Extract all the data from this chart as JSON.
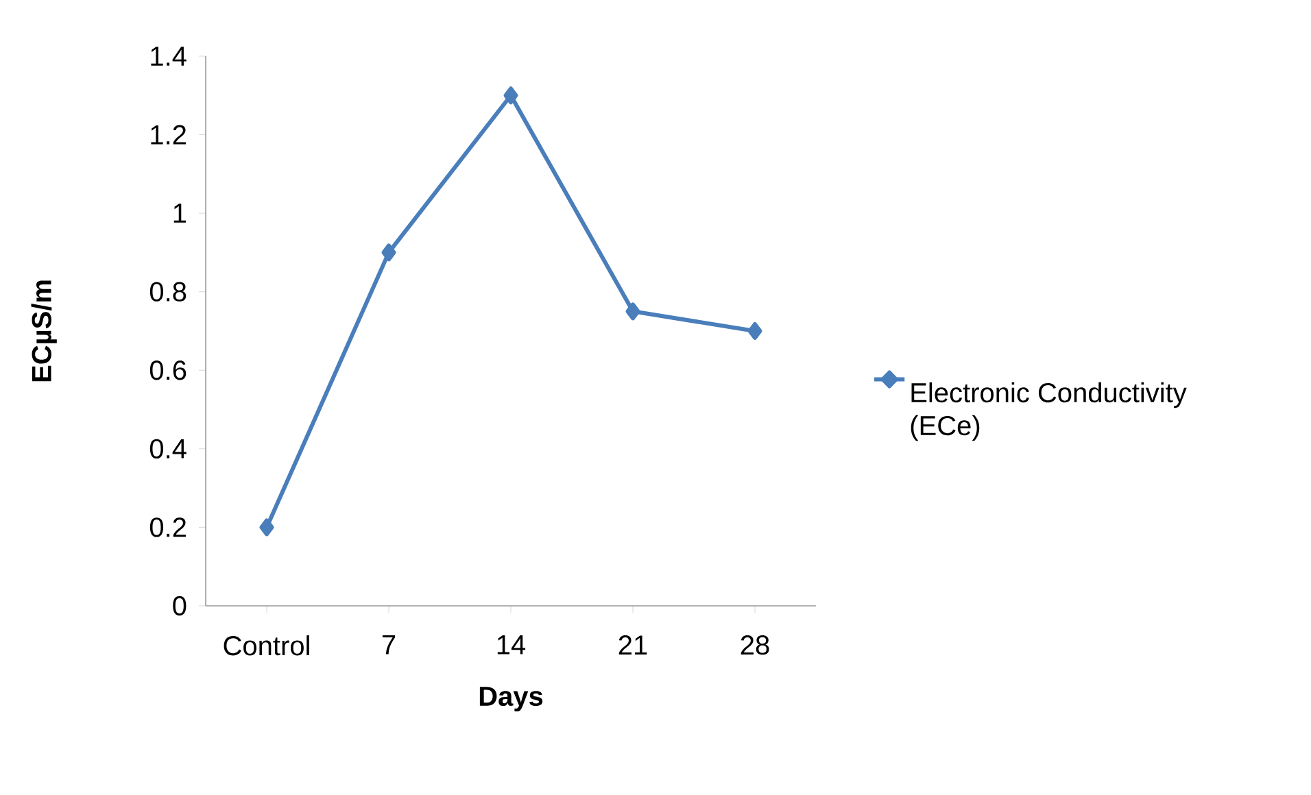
{
  "chart_data": {
    "type": "line",
    "xlabel": "Days",
    "ylabel": "ECµS/m",
    "categories": [
      "Control",
      "7",
      "14",
      "21",
      "28"
    ],
    "series": [
      {
        "name": "Electronic Conductivity (ECe)",
        "color": "#4a7ebb",
        "values": [
          0.2,
          0.9,
          1.3,
          0.75,
          0.7
        ]
      }
    ],
    "ylim": [
      0,
      1.4
    ],
    "yticks": [
      0,
      0.2,
      0.4,
      0.6,
      0.8,
      1,
      1.2,
      1.4
    ],
    "legend": "right",
    "marker": "diamond",
    "line_style": "solid"
  }
}
